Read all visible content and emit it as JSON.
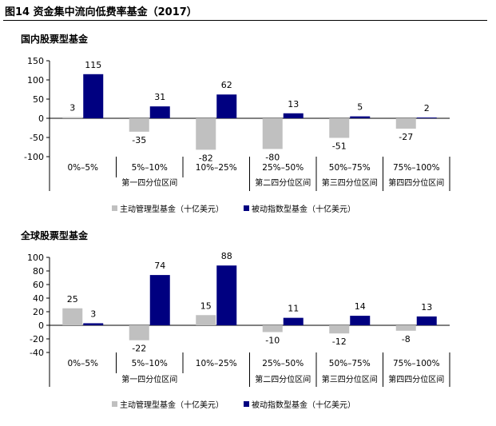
{
  "figure_title": "图14 资金集中流向低费率基金（2017）",
  "colors": {
    "active": "#c0c0c0",
    "passive": "#000080",
    "axis": "#000000"
  },
  "chart_data": [
    {
      "type": "bar",
      "title": "国内股票型基金",
      "categories": [
        "0%–5%",
        "5%–10%",
        "10%–25%",
        "25%–50%",
        "50%–75%",
        "75%–100%"
      ],
      "groups": [
        {
          "label": "第一四分位区间",
          "from": 0,
          "to": 2
        },
        {
          "label": "第二四分位区间",
          "from": 3,
          "to": 3
        },
        {
          "label": "第三四分位区间",
          "from": 4,
          "to": 4
        },
        {
          "label": "第四四分位区间",
          "from": 5,
          "to": 5
        }
      ],
      "series": [
        {
          "name": "主动管理型基金（十亿美元）",
          "values": [
            3,
            -35,
            -82,
            -80,
            -51,
            -27
          ]
        },
        {
          "name": "被动指数型基金（十亿美元）",
          "values": [
            115,
            31,
            62,
            13,
            5,
            2
          ]
        }
      ],
      "ylim": [
        -100,
        150
      ],
      "yticks": [
        150,
        100,
        50,
        0,
        -50,
        -100
      ],
      "legend": "bottom"
    },
    {
      "type": "bar",
      "title": "全球股票型基金",
      "categories": [
        "0%–5%",
        "5%–10%",
        "10%–25%",
        "25%–50%",
        "50%–75%",
        "75%–100%"
      ],
      "groups": [
        {
          "label": "第一四分位区间",
          "from": 0,
          "to": 2
        },
        {
          "label": "第二四分位区间",
          "from": 3,
          "to": 3
        },
        {
          "label": "第三四分位区间",
          "from": 4,
          "to": 4
        },
        {
          "label": "第四四分位区间",
          "from": 5,
          "to": 5
        }
      ],
      "series": [
        {
          "name": "主动管理型基金（十亿美元）",
          "values": [
            25,
            -22,
            15,
            -10,
            -12,
            -8
          ]
        },
        {
          "name": "被动指数型基金（十亿美元）",
          "values": [
            3,
            74,
            88,
            11,
            14,
            13
          ]
        }
      ],
      "ylim": [
        -40,
        100
      ],
      "yticks": [
        100,
        80,
        60,
        40,
        20,
        0,
        -20,
        -40
      ],
      "legend": "bottom"
    }
  ]
}
